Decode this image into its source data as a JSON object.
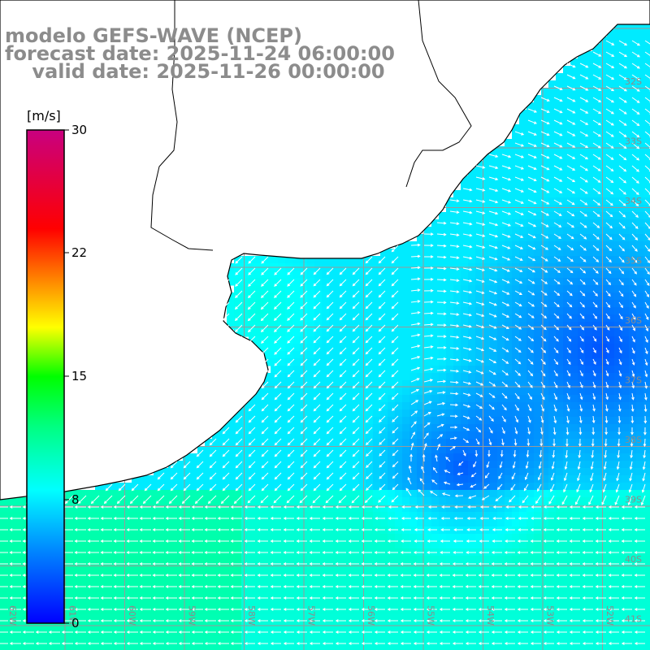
{
  "title": {
    "line1": "modelo GEFS-WAVE (NCEP)",
    "line2": "forecast date: 2025-11-24 06:00:00",
    "line3": "    valid date: 2025-11-26 00:00:00"
  },
  "colorbar": {
    "unit": "[m/s]",
    "ticks": [
      "30",
      "22",
      "15",
      "8",
      "0"
    ],
    "min": 0,
    "max": 30
  },
  "lat_labels": [
    "32S",
    "33S",
    "34S",
    "35S",
    "36S",
    "37S",
    "38S",
    "39S",
    "40S",
    "41S"
  ],
  "lon_labels": [
    "62W",
    "61W",
    "60W",
    "59W",
    "58W",
    "57W",
    "56W",
    "55W",
    "54W",
    "53W",
    "52W"
  ],
  "colors": {
    "grid": "#9a9a9a",
    "coast": "#000000",
    "arrow": "#ffffff",
    "label": "#8c8c8c"
  },
  "wind_field": {
    "description_ok": false,
    "calm_center": "south-east open ocean, light winds (~2-4 m/s)",
    "strong_region": "south-west, ~10-12 m/s from the east"
  }
}
